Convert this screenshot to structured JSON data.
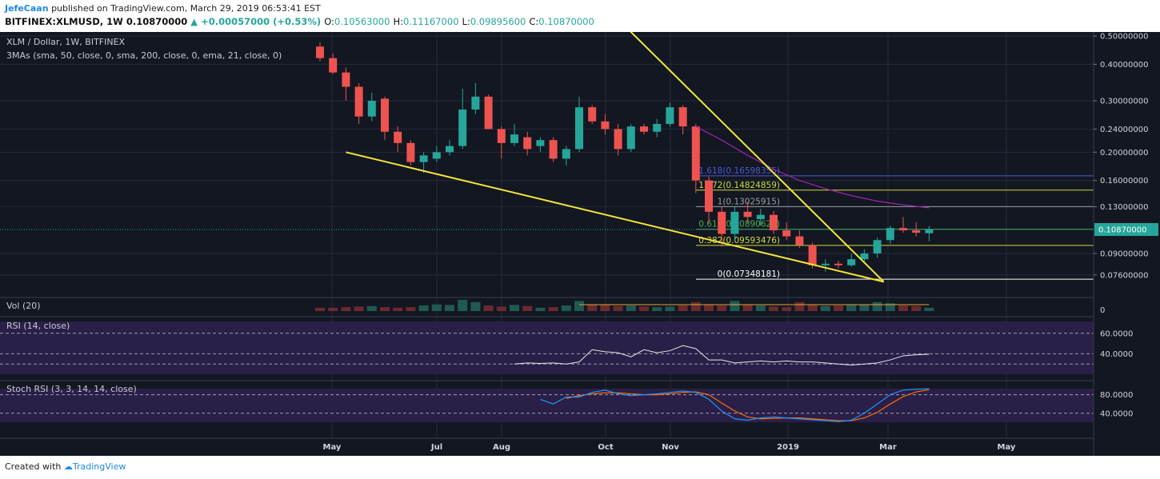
{
  "header": {
    "author": "JefeCaan",
    "published_text": "published on TradingView.com, March 29, 2019 06:53:41 EST",
    "symbol": "BITFINEX:XLMUSD, 1W",
    "last": "0.10870000",
    "change": "▲ +0.00057000 (+0.53%)",
    "open_label": "O:",
    "open": "0.10563000",
    "high_label": "H:",
    "high": "0.11167000",
    "low_label": "L:",
    "low": "0.09895600",
    "close_label": "C:",
    "close": "0.10870000"
  },
  "footer": {
    "created_with": "Created with",
    "brand": "TradingView"
  },
  "chart_data": {
    "type": "candlestick",
    "title": "XLM / Dollar, 1W, BITFINEX",
    "indicator_label": "3MAs (sma, 50, close, 0, sma, 200, close, 0, ema, 21, close, 0)",
    "price_scale": "log",
    "y_ticks": [
      "0.50000000",
      "0.40000000",
      "0.30000000",
      "0.24000000",
      "0.20000000",
      "0.16000000",
      "0.13000000",
      "0.09000000",
      "0.07600000"
    ],
    "y_tick_values": [
      0.5,
      0.4,
      0.3,
      0.24,
      0.2,
      0.16,
      0.13,
      0.09,
      0.076
    ],
    "x_ticks": [
      "May",
      "Jul",
      "Aug",
      "Oct",
      "Nov",
      "2019",
      "Mar",
      "May"
    ],
    "last_price_label": "0.10870000",
    "colors": {
      "up": "#26a69a",
      "down": "#ef5350",
      "trendline": "#f5e63a",
      "ma": "#9c27b0",
      "background": "#131722"
    },
    "candles": [
      {
        "o": 0.46,
        "h": 0.475,
        "l": 0.41,
        "c": 0.42
      },
      {
        "o": 0.42,
        "h": 0.435,
        "l": 0.37,
        "c": 0.375
      },
      {
        "o": 0.375,
        "h": 0.39,
        "l": 0.3,
        "c": 0.335
      },
      {
        "o": 0.335,
        "h": 0.345,
        "l": 0.25,
        "c": 0.265
      },
      {
        "o": 0.265,
        "h": 0.32,
        "l": 0.255,
        "c": 0.3
      },
      {
        "o": 0.305,
        "h": 0.31,
        "l": 0.22,
        "c": 0.235
      },
      {
        "o": 0.235,
        "h": 0.245,
        "l": 0.2,
        "c": 0.215
      },
      {
        "o": 0.215,
        "h": 0.22,
        "l": 0.18,
        "c": 0.185
      },
      {
        "o": 0.185,
        "h": 0.2,
        "l": 0.17,
        "c": 0.195
      },
      {
        "o": 0.19,
        "h": 0.21,
        "l": 0.185,
        "c": 0.2
      },
      {
        "o": 0.2,
        "h": 0.22,
        "l": 0.195,
        "c": 0.21
      },
      {
        "o": 0.21,
        "h": 0.33,
        "l": 0.205,
        "c": 0.28
      },
      {
        "o": 0.28,
        "h": 0.345,
        "l": 0.27,
        "c": 0.31
      },
      {
        "o": 0.31,
        "h": 0.315,
        "l": 0.24,
        "c": 0.24
      },
      {
        "o": 0.24,
        "h": 0.245,
        "l": 0.19,
        "c": 0.215
      },
      {
        "o": 0.215,
        "h": 0.25,
        "l": 0.21,
        "c": 0.23
      },
      {
        "o": 0.225,
        "h": 0.235,
        "l": 0.195,
        "c": 0.205
      },
      {
        "o": 0.21,
        "h": 0.225,
        "l": 0.2,
        "c": 0.22
      },
      {
        "o": 0.22,
        "h": 0.225,
        "l": 0.185,
        "c": 0.19
      },
      {
        "o": 0.19,
        "h": 0.21,
        "l": 0.18,
        "c": 0.205
      },
      {
        "o": 0.205,
        "h": 0.31,
        "l": 0.2,
        "c": 0.285
      },
      {
        "o": 0.285,
        "h": 0.29,
        "l": 0.25,
        "c": 0.255
      },
      {
        "o": 0.255,
        "h": 0.27,
        "l": 0.23,
        "c": 0.24
      },
      {
        "o": 0.24,
        "h": 0.25,
        "l": 0.195,
        "c": 0.205
      },
      {
        "o": 0.205,
        "h": 0.25,
        "l": 0.2,
        "c": 0.245
      },
      {
        "o": 0.245,
        "h": 0.25,
        "l": 0.23,
        "c": 0.235
      },
      {
        "o": 0.235,
        "h": 0.26,
        "l": 0.225,
        "c": 0.25
      },
      {
        "o": 0.25,
        "h": 0.295,
        "l": 0.245,
        "c": 0.285
      },
      {
        "o": 0.285,
        "h": 0.29,
        "l": 0.23,
        "c": 0.245
      },
      {
        "o": 0.245,
        "h": 0.25,
        "l": 0.145,
        "c": 0.16
      },
      {
        "o": 0.16,
        "h": 0.165,
        "l": 0.115,
        "c": 0.125
      },
      {
        "o": 0.125,
        "h": 0.13,
        "l": 0.095,
        "c": 0.105
      },
      {
        "o": 0.105,
        "h": 0.13,
        "l": 0.1,
        "c": 0.125
      },
      {
        "o": 0.125,
        "h": 0.135,
        "l": 0.115,
        "c": 0.12
      },
      {
        "o": 0.118,
        "h": 0.128,
        "l": 0.112,
        "c": 0.122
      },
      {
        "o": 0.122,
        "h": 0.126,
        "l": 0.105,
        "c": 0.108
      },
      {
        "o": 0.108,
        "h": 0.115,
        "l": 0.1,
        "c": 0.103
      },
      {
        "o": 0.103,
        "h": 0.108,
        "l": 0.094,
        "c": 0.096
      },
      {
        "o": 0.096,
        "h": 0.098,
        "l": 0.08,
        "c": 0.082
      },
      {
        "o": 0.082,
        "h": 0.086,
        "l": 0.078,
        "c": 0.083
      },
      {
        "o": 0.083,
        "h": 0.085,
        "l": 0.08,
        "c": 0.082
      },
      {
        "o": 0.082,
        "h": 0.09,
        "l": 0.081,
        "c": 0.086
      },
      {
        "o": 0.086,
        "h": 0.093,
        "l": 0.084,
        "c": 0.09
      },
      {
        "o": 0.09,
        "h": 0.102,
        "l": 0.087,
        "c": 0.1
      },
      {
        "o": 0.1,
        "h": 0.112,
        "l": 0.097,
        "c": 0.11
      },
      {
        "o": 0.11,
        "h": 0.12,
        "l": 0.106,
        "c": 0.108
      },
      {
        "o": 0.108,
        "h": 0.115,
        "l": 0.103,
        "c": 0.106
      },
      {
        "o": 0.1056,
        "h": 0.1117,
        "l": 0.099,
        "c": 0.1087
      }
    ],
    "fib_levels": [
      {
        "label": "1.618(0.16598355)",
        "price": 0.16598355,
        "color": "#4a5bd4"
      },
      {
        "label": "1.272(0.14824859)",
        "price": 0.14824859,
        "color": "#cddc39"
      },
      {
        "label": "1(0.13025915)",
        "price": 0.13025915,
        "color": "#9e9e9e"
      },
      {
        "label": "0.618(0.10890621)",
        "price": 0.10890621,
        "color": "#4caf50"
      },
      {
        "label": "0.382(0.09593476)",
        "price": 0.09593476,
        "color": "#cddc39"
      },
      {
        "label": "0(0.07348181)",
        "price": 0.07348181,
        "color": "#ffffff"
      }
    ],
    "ma_line": [
      [
        29,
        0.245
      ],
      [
        31,
        0.22
      ],
      [
        33,
        0.195
      ],
      [
        35,
        0.175
      ],
      [
        37,
        0.16
      ],
      [
        39,
        0.15
      ],
      [
        41,
        0.142
      ],
      [
        43,
        0.136
      ],
      [
        45,
        0.132
      ],
      [
        47,
        0.129
      ]
    ],
    "trendlines": [
      {
        "x1": 22.5,
        "y1": 0.6,
        "x2": 43.5,
        "y2": 0.072
      },
      {
        "x1": 2,
        "y1": 0.2,
        "x2": 43.5,
        "y2": 0.072
      }
    ],
    "volume": {
      "label": "Vol (20)",
      "axis_tick": "0",
      "values": [
        0.3,
        0.3,
        0.35,
        0.4,
        0.45,
        0.35,
        0.3,
        0.35,
        0.5,
        0.6,
        0.55,
        1.0,
        0.8,
        0.5,
        0.4,
        0.55,
        0.45,
        0.3,
        0.35,
        0.5,
        0.9,
        0.6,
        0.55,
        0.45,
        0.5,
        0.4,
        0.35,
        0.4,
        0.5,
        0.8,
        0.6,
        0.5,
        0.9,
        0.6,
        0.5,
        0.4,
        0.35,
        0.8,
        0.6,
        0.45,
        0.5,
        0.6,
        0.55,
        0.8,
        0.7,
        0.5,
        0.45,
        0.3
      ]
    },
    "rsi": {
      "label": "RSI (14, close)",
      "ticks": [
        "60.0000",
        "40.0000"
      ],
      "tick_values": [
        60,
        40
      ],
      "values": [
        [
          15,
          30
        ],
        [
          16,
          31
        ],
        [
          17,
          30.5
        ],
        [
          18,
          31
        ],
        [
          19,
          30
        ],
        [
          20,
          32
        ],
        [
          21,
          44
        ],
        [
          22,
          42
        ],
        [
          23,
          41
        ],
        [
          24,
          37
        ],
        [
          25,
          44
        ],
        [
          26,
          41
        ],
        [
          27,
          43
        ],
        [
          28,
          48
        ],
        [
          29,
          45
        ],
        [
          30,
          34
        ],
        [
          31,
          34
        ],
        [
          32,
          31
        ],
        [
          33,
          32
        ],
        [
          34,
          33
        ],
        [
          35,
          32
        ],
        [
          36,
          33
        ],
        [
          37,
          32
        ],
        [
          38,
          32
        ],
        [
          39,
          31
        ],
        [
          40,
          30
        ],
        [
          41,
          29
        ],
        [
          42,
          30
        ],
        [
          43,
          31
        ],
        [
          44,
          34
        ],
        [
          45,
          38
        ],
        [
          46,
          39
        ],
        [
          47,
          39.5
        ]
      ]
    },
    "stoch": {
      "label": "Stoch RSI (3, 3, 14, 14, close)",
      "ticks": [
        "80.0000",
        "40.0000"
      ],
      "tick_values": [
        80,
        40
      ],
      "k": [
        [
          17,
          70
        ],
        [
          18,
          60
        ],
        [
          19,
          75
        ],
        [
          20,
          75
        ],
        [
          21,
          85
        ],
        [
          22,
          90
        ],
        [
          23,
          82
        ],
        [
          24,
          78
        ],
        [
          25,
          80
        ],
        [
          26,
          82
        ],
        [
          27,
          85
        ],
        [
          28,
          88
        ],
        [
          29,
          85
        ],
        [
          30,
          70
        ],
        [
          31,
          45
        ],
        [
          32,
          28
        ],
        [
          33,
          25
        ],
        [
          34,
          30
        ],
        [
          35,
          32
        ],
        [
          36,
          30
        ],
        [
          37,
          28
        ],
        [
          38,
          26
        ],
        [
          39,
          24
        ],
        [
          40,
          22
        ],
        [
          41,
          25
        ],
        [
          42,
          40
        ],
        [
          43,
          60
        ],
        [
          44,
          80
        ],
        [
          45,
          90
        ],
        [
          46,
          92
        ],
        [
          47,
          93
        ]
      ],
      "d": [
        [
          19,
          72
        ],
        [
          20,
          78
        ],
        [
          21,
          82
        ],
        [
          22,
          84
        ],
        [
          23,
          84
        ],
        [
          24,
          82
        ],
        [
          25,
          80
        ],
        [
          26,
          80
        ],
        [
          27,
          82
        ],
        [
          28,
          85
        ],
        [
          29,
          86
        ],
        [
          30,
          80
        ],
        [
          31,
          62
        ],
        [
          32,
          45
        ],
        [
          33,
          32
        ],
        [
          34,
          28
        ],
        [
          35,
          29
        ],
        [
          36,
          30
        ],
        [
          37,
          30
        ],
        [
          38,
          28
        ],
        [
          39,
          26
        ],
        [
          40,
          24
        ],
        [
          41,
          24
        ],
        [
          42,
          30
        ],
        [
          43,
          42
        ],
        [
          44,
          60
        ],
        [
          45,
          76
        ],
        [
          46,
          86
        ],
        [
          47,
          91
        ]
      ]
    }
  }
}
